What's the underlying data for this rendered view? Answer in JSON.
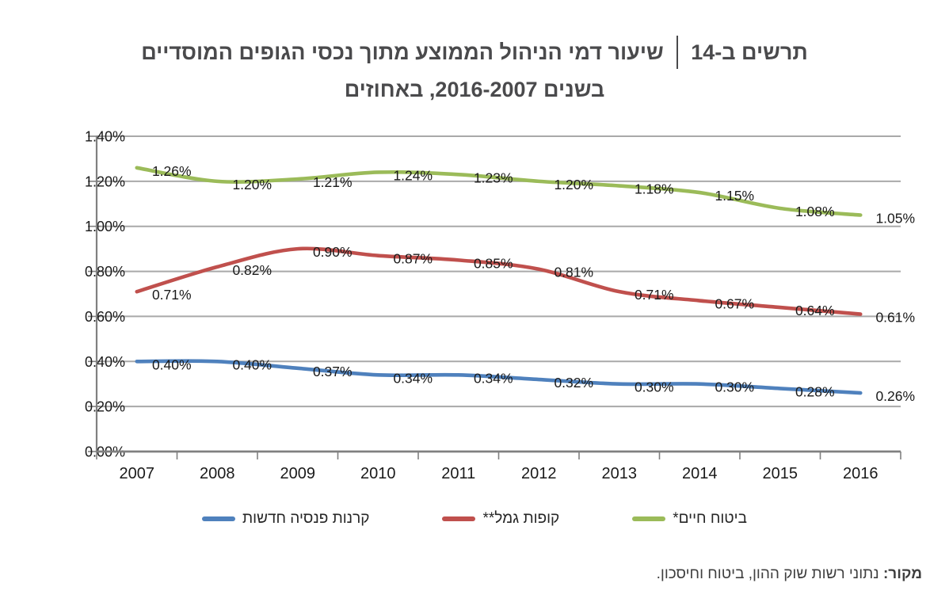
{
  "title": {
    "chart_label": "תרשים ב-14",
    "main": "שיעור דמי הניהול הממוצע מתוך נכסי הגופים המוסדיים",
    "subtitle": "בשנים 2016-2007, באחוזים"
  },
  "chart_data": {
    "type": "line",
    "x": [
      "2007",
      "2008",
      "2009",
      "2010",
      "2011",
      "2012",
      "2013",
      "2014",
      "2015",
      "2016"
    ],
    "series": [
      {
        "name": "ביטוח חיים*",
        "color": "#9BBB59",
        "values": [
          1.26,
          1.2,
          1.21,
          1.24,
          1.23,
          1.2,
          1.18,
          1.15,
          1.08,
          1.05
        ],
        "labels": [
          "1.26%",
          "1.20%",
          "1.21%",
          "1.24%",
          "1.23%",
          "1.20%",
          "1.18%",
          "1.15%",
          "1.08%",
          "1.05%"
        ]
      },
      {
        "name": "קופות גמל**",
        "color": "#C0504D",
        "values": [
          0.71,
          0.82,
          0.9,
          0.87,
          0.85,
          0.81,
          0.71,
          0.67,
          0.64,
          0.61
        ],
        "labels": [
          "0.71%",
          "0.82%",
          "0.90%",
          "0.87%",
          "0.85%",
          "0.81%",
          "0.71%",
          "0.67%",
          "0.64%",
          "0.61%"
        ]
      },
      {
        "name": "קרנות פנסיה חדשות",
        "color": "#4F81BD",
        "values": [
          0.4,
          0.4,
          0.37,
          0.34,
          0.34,
          0.32,
          0.3,
          0.3,
          0.28,
          0.26
        ],
        "labels": [
          "0.40%",
          "0.40%",
          "0.37%",
          "0.34%",
          "0.34%",
          "0.32%",
          "0.30%",
          "0.30%",
          "0.28%",
          "0.26%"
        ]
      }
    ],
    "ylim": [
      0,
      1.4
    ],
    "y_ticks": [
      "0.00%",
      "0.20%",
      "0.40%",
      "0.60%",
      "0.80%",
      "1.00%",
      "1.20%",
      "1.40%"
    ],
    "grid": true,
    "smoothed": true,
    "legend_position": "bottom"
  },
  "legend": {
    "items": [
      {
        "label": "ביטוח חיים*",
        "color": "#9BBB59"
      },
      {
        "label": "קופות גמל**",
        "color": "#C0504D"
      },
      {
        "label": "קרנות פנסיה חדשות",
        "color": "#4F81BD"
      }
    ]
  },
  "source": {
    "prefix": "מקור:",
    "text": "נתוני רשות שוק ההון, ביטוח וחיסכון."
  },
  "colors": {
    "grid": "#A9A9A9",
    "axis": "#808080",
    "tick_label": "#1A1A1A",
    "data_label": "#1A1A1A",
    "title": "#4A4A4C",
    "legend_text": "#262626",
    "source_text": "#3F3F3F",
    "background": "#FFFFFF"
  }
}
